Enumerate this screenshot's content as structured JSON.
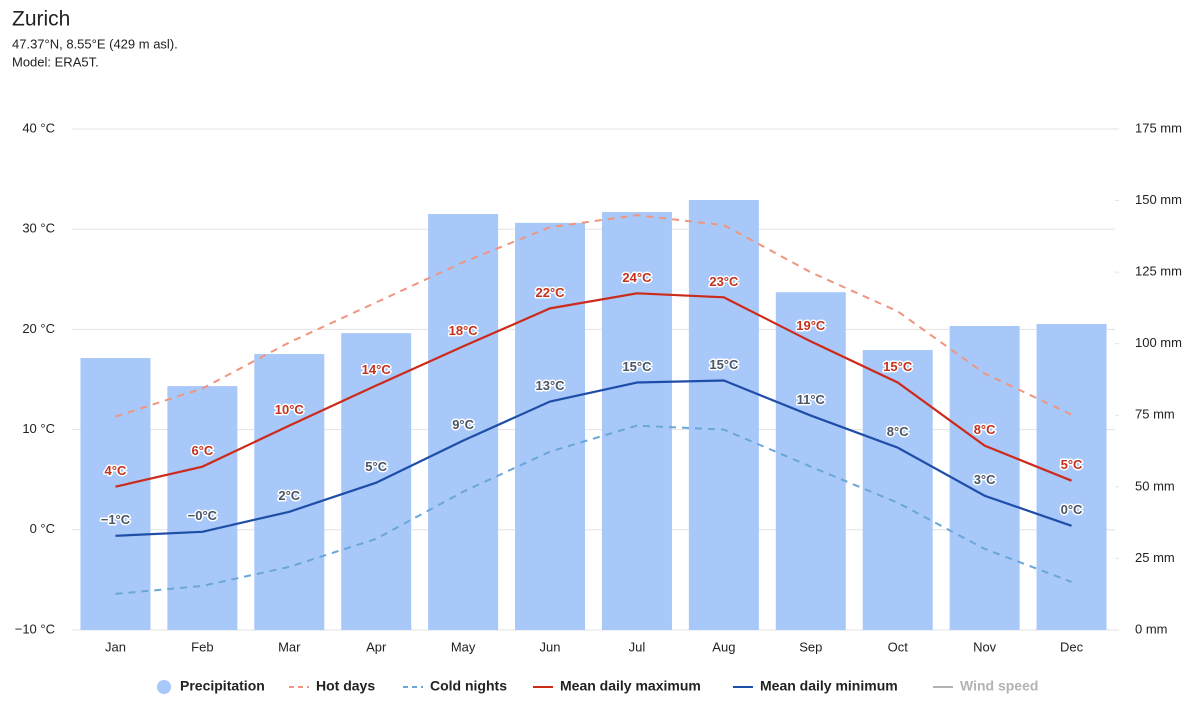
{
  "chart_data": {
    "type": "bar",
    "title": "Zurich",
    "subtitle": [
      "47.37°N, 8.55°E (429 m asl).",
      "Model: ERA5T."
    ],
    "categories": [
      "Jan",
      "Feb",
      "Mar",
      "Apr",
      "May",
      "Jun",
      "Jul",
      "Aug",
      "Sep",
      "Oct",
      "Nov",
      "Dec"
    ],
    "ylim": [
      -10,
      40
    ],
    "yticks": [
      {
        "value": -10,
        "label": "−10 °C"
      },
      {
        "value": 0,
        "label": "0 °C"
      },
      {
        "value": 10,
        "label": "10 °C"
      },
      {
        "value": 20,
        "label": "20 °C"
      },
      {
        "value": 30,
        "label": "30 °C"
      },
      {
        "value": 40,
        "label": "40 °C"
      }
    ],
    "y2lim": [
      0,
      175
    ],
    "y2ticks": [
      {
        "value": 0,
        "label": "0 mm"
      },
      {
        "value": 25,
        "label": "25 mm"
      },
      {
        "value": 50,
        "label": "50 mm"
      },
      {
        "value": 75,
        "label": "75 mm"
      },
      {
        "value": 100,
        "label": "100 mm"
      },
      {
        "value": 125,
        "label": "125 mm"
      },
      {
        "value": 150,
        "label": "150 mm"
      },
      {
        "value": 175,
        "label": "175 mm"
      }
    ],
    "grid": true,
    "legend": "bottom",
    "series": [
      {
        "name": "Precipitation",
        "type": "bar",
        "axis": "y2",
        "color": "#a8c8fa",
        "values": [
          95.0,
          85.2,
          96.4,
          103.7,
          145.3,
          142.2,
          146.0,
          150.2,
          118.0,
          97.8,
          106.2,
          106.9
        ]
      },
      {
        "name": "Hot days",
        "type": "line",
        "dash": true,
        "color": "#f0957f",
        "values": [
          11.3,
          14.1,
          18.7,
          22.7,
          26.7,
          30.2,
          31.4,
          30.4,
          25.7,
          21.8,
          15.6,
          11.5
        ]
      },
      {
        "name": "Cold nights",
        "type": "line",
        "dash": true,
        "color": "#6aa6d8",
        "values": [
          -6.4,
          -5.6,
          -3.7,
          -0.9,
          3.8,
          7.8,
          10.4,
          10.0,
          6.3,
          2.7,
          -1.9,
          -5.2
        ]
      },
      {
        "name": "Mean daily maximum",
        "type": "line",
        "color": "#cc2a1a",
        "label_color": "#c4321e",
        "values": [
          4.3,
          6.3,
          10.4,
          14.4,
          18.3,
          22.1,
          23.6,
          23.2,
          18.8,
          14.7,
          8.4,
          4.9
        ],
        "value_labels": [
          "4°C",
          "6°C",
          "10°C",
          "14°C",
          "18°C",
          "22°C",
          "24°C",
          "23°C",
          "19°C",
          "15°C",
          "8°C",
          "5°C"
        ]
      },
      {
        "name": "Mean daily minimum",
        "type": "line",
        "color": "#1f4ea8",
        "label_color": "#4a5568",
        "values": [
          -0.6,
          -0.2,
          1.8,
          4.7,
          8.9,
          12.8,
          14.7,
          14.9,
          11.4,
          8.2,
          3.4,
          0.4
        ],
        "value_labels": [
          "−1°C",
          "−0°C",
          "2°C",
          "5°C",
          "9°C",
          "13°C",
          "15°C",
          "15°C",
          "11°C",
          "8°C",
          "3°C",
          "0°C"
        ]
      }
    ],
    "hidden_series": [
      {
        "name": "Wind speed",
        "color": "#b3b3b3"
      }
    ]
  }
}
